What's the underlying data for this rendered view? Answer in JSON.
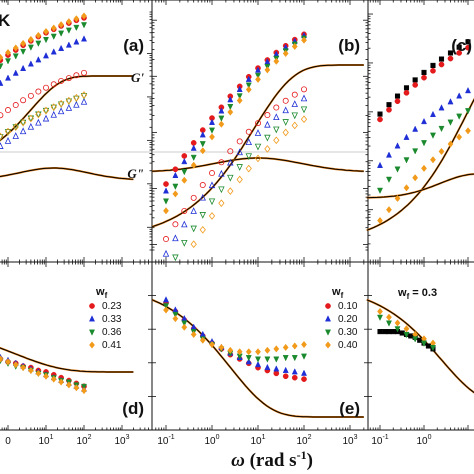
{
  "figure": {
    "corner_label": "K",
    "xlabel_main": "ω",
    "xlabel_unit": " (rad s",
    "xlabel_exp": "-1",
    "xlabel_close": ")"
  },
  "colors": {
    "red": "#e41a1c",
    "blue": "#1f2fd6",
    "green": "#1b8a2e",
    "orange": "#f29a1a",
    "black": "#000000",
    "orange_fit": "#e07a10",
    "grid_line": "#bbbbbb"
  },
  "chart_data": [
    {
      "type": "scatter",
      "panel": "a",
      "label": "(a)",
      "curve_labels": [
        "G'",
        "G\""
      ],
      "xlim": [
        0.05,
        3000
      ],
      "ylim": [
        0.01,
        100000
      ],
      "xscale": "log",
      "yscale": "log",
      "series": [
        {
          "name": "0.23",
          "color": "red",
          "x": [
            0.1,
            0.16,
            0.25,
            0.4,
            0.63,
            1,
            1.6,
            2.5,
            4,
            6.3,
            10,
            16,
            25,
            40,
            63,
            100
          ],
          "y": [
            2200,
            3000,
            4000,
            5300,
            7000,
            9200,
            12000,
            15500,
            19500,
            24500,
            30000,
            36000,
            43000,
            50000,
            58000,
            66000
          ]
        },
        {
          "name": "0.33",
          "color": "blue",
          "x": [
            0.1,
            0.16,
            0.25,
            0.4,
            0.63,
            1,
            1.6,
            2.5,
            4,
            6.3,
            10,
            16,
            25,
            40,
            63,
            100
          ],
          "y": [
            600,
            850,
            1150,
            1550,
            2050,
            2700,
            3500,
            4500,
            5700,
            7100,
            8800,
            10800,
            13000,
            15500,
            18300,
            21500
          ]
        },
        {
          "name": "0.36",
          "color": "green",
          "x": [
            0.1,
            0.16,
            0.25,
            0.4,
            0.63,
            1,
            1.6,
            2.5,
            4,
            6.3,
            10,
            16,
            25,
            40,
            63,
            100
          ],
          "y": [
            1500,
            2100,
            2900,
            3900,
            5200,
            6800,
            8800,
            11200,
            14000,
            17300,
            21000,
            25000,
            29500,
            34500,
            40000,
            46000
          ]
        },
        {
          "name": "0.41",
          "color": "orange",
          "x": [
            0.1,
            0.16,
            0.25,
            0.4,
            0.63,
            1,
            1.6,
            2.5,
            4,
            6.3,
            10,
            16,
            25,
            40,
            63,
            100
          ],
          "y": [
            2600,
            3500,
            4700,
            6200,
            8100,
            10500,
            13400,
            17000,
            21000,
            26000,
            32000,
            38500,
            46000,
            54000,
            63000,
            73000
          ]
        }
      ]
    },
    {
      "type": "scatter",
      "panel": "b",
      "label": "(b)",
      "xlim": [
        0.05,
        3000
      ],
      "ylim": [
        0.01,
        100000
      ],
      "xscale": "log",
      "yscale": "log",
      "series": [
        {
          "name": "0.10",
          "color": "red",
          "x": [
            0.1,
            0.16,
            0.25,
            0.4,
            0.63,
            1,
            1.6,
            2.5,
            4,
            6.3,
            10,
            16,
            25,
            40,
            63,
            100
          ],
          "y": [
            1.2,
            2.2,
            3.8,
            6.5,
            11,
            18,
            28,
            44,
            66,
            98,
            140,
            195,
            265,
            350,
            450,
            560
          ]
        },
        {
          "name": "0.20",
          "color": "blue",
          "x": [
            0.1,
            0.16,
            0.25,
            0.4,
            0.63,
            1,
            1.6,
            2.5,
            4,
            6.3,
            10,
            16,
            25,
            40,
            63,
            100
          ],
          "y": [
            0.9,
            1.7,
            3,
            5.2,
            9,
            15,
            24,
            38,
            58,
            88,
            128,
            180,
            245,
            325,
            420,
            530
          ]
        },
        {
          "name": "0.30",
          "color": "green",
          "x": [
            0.1,
            0.16,
            0.25,
            0.4,
            0.63,
            1,
            1.6,
            2.5,
            4,
            6.3,
            10,
            16,
            25,
            40,
            63,
            100
          ],
          "y": [
            0.6,
            1.1,
            2,
            3.6,
            6.3,
            11,
            18,
            29,
            45,
            70,
            104,
            150,
            210,
            285,
            375,
            480
          ]
        },
        {
          "name": "0.40",
          "color": "orange",
          "x": [
            0.1,
            0.16,
            0.25,
            0.4,
            0.63,
            1,
            1.6,
            2.5,
            4,
            6.3,
            10,
            16,
            25,
            40,
            63,
            100
          ],
          "y": [
            0.4,
            0.8,
            1.4,
            2.6,
            4.7,
            8.3,
            14,
            23,
            37,
            58,
            88,
            130,
            185,
            255,
            340,
            440
          ]
        }
      ]
    },
    {
      "type": "scatter",
      "panel": "c",
      "label": "(c)",
      "xlim": [
        0.05,
        3000
      ],
      "ylim": [
        0.01,
        100000
      ],
      "xscale": "log",
      "yscale": "log",
      "series": [
        {
          "name": "black",
          "color": "black",
          "x": [
            0.1,
            0.16,
            0.25,
            0.4,
            0.63,
            1,
            1.6,
            2.5,
            4,
            6.3,
            10,
            16,
            25,
            40,
            63,
            100
          ],
          "y": [
            900,
            1400,
            2100,
            3100,
            4500,
            6400,
            8900,
            12000,
            16000,
            21000,
            27000,
            34000,
            42000,
            51000,
            61000,
            72000
          ]
        },
        {
          "name": "red",
          "color": "red",
          "x": [
            0.1,
            0.16,
            0.25,
            0.4,
            0.63,
            1,
            1.6,
            2.5,
            4,
            6.3,
            10,
            16,
            25,
            40,
            63,
            100
          ],
          "y": [
            700,
            1100,
            1650,
            2450,
            3550,
            5000,
            6900,
            9300,
            12300,
            16000,
            20500,
            25800,
            32000,
            39000,
            47000,
            56000
          ]
        },
        {
          "name": "blue",
          "color": "blue",
          "x": [
            0.1,
            0.16,
            0.25,
            0.4,
            0.63,
            1,
            1.6,
            2.5,
            4,
            6.3,
            10,
            16,
            25,
            40,
            63,
            100
          ],
          "y": [
            80,
            130,
            200,
            300,
            440,
            630,
            880,
            1200,
            1600,
            2100,
            2700,
            3400,
            4200,
            5100,
            6100,
            7200
          ]
        },
        {
          "name": "green",
          "color": "green",
          "x": [
            0.1,
            0.16,
            0.25,
            0.4,
            0.63,
            1,
            1.6,
            2.5,
            4,
            6.3,
            10,
            16,
            25,
            40,
            63,
            100
          ],
          "y": [
            25,
            42,
            68,
            105,
            160,
            235,
            335,
            460,
            620,
            820,
            1060,
            1340,
            1660,
            2030,
            2450,
            2900
          ]
        },
        {
          "name": "orange",
          "color": "orange",
          "x": [
            0.1,
            0.16,
            0.25,
            0.4,
            0.63,
            1,
            1.6,
            2.5,
            4,
            6.3,
            10,
            16,
            25,
            40,
            63,
            100
          ],
          "y": [
            6,
            10,
            17,
            28,
            45,
            70,
            105,
            155,
            220,
            305,
            410,
            540,
            690,
            870,
            1070,
            1300
          ]
        }
      ]
    },
    {
      "type": "scatter",
      "panel": "d",
      "label": "(d)",
      "legend_title": "w",
      "legend_sub": "f",
      "xlim": [
        0.05,
        3000
      ],
      "ylim": [
        0,
        1
      ],
      "xscale": "log",
      "xticks": [
        "0",
        "10",
        "10",
        "10"
      ],
      "xtick_exps": [
        "",
        "1",
        "2",
        "3"
      ],
      "series": [
        {
          "name": "0.23",
          "color": "red",
          "x": [
            0.1,
            0.16,
            0.25,
            0.4,
            0.63,
            1,
            1.6,
            2.5,
            4,
            6.3,
            10,
            16,
            25,
            40,
            63,
            100
          ],
          "y": [
            0.48,
            0.46,
            0.44,
            0.42,
            0.41,
            0.39,
            0.38,
            0.36,
            0.35,
            0.33,
            0.32,
            0.3,
            0.28,
            0.26,
            0.24,
            0.22
          ]
        },
        {
          "name": "0.33",
          "color": "blue",
          "x": [
            0.1,
            0.16,
            0.25,
            0.4,
            0.63,
            1,
            1.6,
            2.5,
            4,
            6.3,
            10,
            16,
            25,
            40,
            63,
            100
          ],
          "y": [
            0.5,
            0.48,
            0.46,
            0.44,
            0.42,
            0.4,
            0.38,
            0.36,
            0.34,
            0.32,
            0.3,
            0.28,
            0.26,
            0.24,
            0.22,
            0.2
          ]
        },
        {
          "name": "0.36",
          "color": "green",
          "x": [
            0.1,
            0.16,
            0.25,
            0.4,
            0.63,
            1,
            1.6,
            2.5,
            4,
            6.3,
            10,
            16,
            25,
            40,
            63,
            100
          ],
          "y": [
            0.47,
            0.45,
            0.43,
            0.41,
            0.4,
            0.38,
            0.36,
            0.35,
            0.33,
            0.31,
            0.3,
            0.28,
            0.26,
            0.25,
            0.23,
            0.22
          ]
        },
        {
          "name": "0.41",
          "color": "orange",
          "x": [
            0.1,
            0.16,
            0.25,
            0.4,
            0.63,
            1,
            1.6,
            2.5,
            4,
            6.3,
            10,
            16,
            25,
            40,
            63,
            100
          ],
          "y": [
            0.49,
            0.47,
            0.45,
            0.43,
            0.41,
            0.39,
            0.37,
            0.35,
            0.33,
            0.31,
            0.29,
            0.27,
            0.25,
            0.23,
            0.21,
            0.19
          ]
        }
      ]
    },
    {
      "type": "scatter",
      "panel": "e",
      "label": "(e)",
      "legend_title": "w",
      "legend_sub": "f",
      "xlim": [
        0.05,
        3000
      ],
      "ylim": [
        0,
        1
      ],
      "xscale": "log",
      "xticks": [
        "10",
        "10",
        "10",
        "10",
        "10"
      ],
      "xtick_exps": [
        "-1",
        "0",
        "1",
        "2",
        "3"
      ],
      "series": [
        {
          "name": "0.10",
          "color": "red",
          "x": [
            0.1,
            0.16,
            0.25,
            0.4,
            0.63,
            1,
            1.6,
            2.5,
            4,
            6.3,
            10,
            16,
            25,
            40,
            63,
            100
          ],
          "y": [
            0.8,
            0.74,
            0.68,
            0.62,
            0.57,
            0.52,
            0.48,
            0.44,
            0.41,
            0.38,
            0.35,
            0.33,
            0.31,
            0.29,
            0.28,
            0.27
          ]
        },
        {
          "name": "0.20",
          "color": "blue",
          "x": [
            0.1,
            0.16,
            0.25,
            0.4,
            0.63,
            1,
            1.6,
            2.5,
            4,
            6.3,
            10,
            16,
            25,
            40,
            63,
            100
          ],
          "y": [
            0.82,
            0.75,
            0.69,
            0.63,
            0.58,
            0.53,
            0.49,
            0.45,
            0.42,
            0.39,
            0.37,
            0.35,
            0.34,
            0.33,
            0.32,
            0.31
          ]
        },
        {
          "name": "0.30",
          "color": "green",
          "x": [
            0.1,
            0.16,
            0.25,
            0.4,
            0.63,
            1,
            1.6,
            2.5,
            4,
            6.3,
            10,
            16,
            25,
            40,
            63,
            100
          ],
          "y": [
            0.78,
            0.72,
            0.66,
            0.6,
            0.55,
            0.51,
            0.48,
            0.45,
            0.43,
            0.42,
            0.41,
            0.41,
            0.41,
            0.42,
            0.42,
            0.43
          ]
        },
        {
          "name": "0.40",
          "color": "orange",
          "x": [
            0.1,
            0.16,
            0.25,
            0.4,
            0.63,
            1,
            1.6,
            2.5,
            4,
            6.3,
            10,
            16,
            25,
            40,
            63,
            100
          ],
          "y": [
            0.75,
            0.69,
            0.63,
            0.58,
            0.54,
            0.51,
            0.49,
            0.47,
            0.46,
            0.46,
            0.46,
            0.47,
            0.48,
            0.49,
            0.5,
            0.51
          ]
        }
      ]
    },
    {
      "type": "scatter",
      "panel": "f",
      "legend_title": "w",
      "legend_sub": "f",
      "legend_value": " = 0.3",
      "xlim": [
        0.05,
        3000
      ],
      "ylim": [
        0,
        1
      ],
      "xscale": "log",
      "xticks": [
        "10",
        "10"
      ],
      "xtick_exps": [
        "-1",
        "0"
      ],
      "series": [
        {
          "name": "black",
          "color": "black",
          "x": [
            0.1,
            0.13,
            0.16,
            0.2,
            0.25,
            0.32,
            0.4,
            0.5,
            0.63,
            0.8,
            1,
            1.26,
            1.6
          ],
          "y": [
            0.6,
            0.6,
            0.6,
            0.6,
            0.6,
            0.59,
            0.58,
            0.57,
            0.56,
            0.54,
            0.52,
            0.5,
            0.48
          ]
        },
        {
          "name": "orange",
          "color": "orange",
          "x": [
            0.1,
            0.16,
            0.25,
            0.4,
            0.63,
            1,
            1.6
          ],
          "y": [
            0.74,
            0.7,
            0.66,
            0.62,
            0.58,
            0.55,
            0.52
          ]
        },
        {
          "name": "green",
          "color": "green",
          "x": [
            0.1,
            0.16,
            0.25,
            0.4,
            0.63,
            1,
            1.6
          ],
          "y": [
            0.7,
            0.66,
            0.62,
            0.58,
            0.55,
            0.52,
            0.49
          ]
        }
      ]
    }
  ]
}
